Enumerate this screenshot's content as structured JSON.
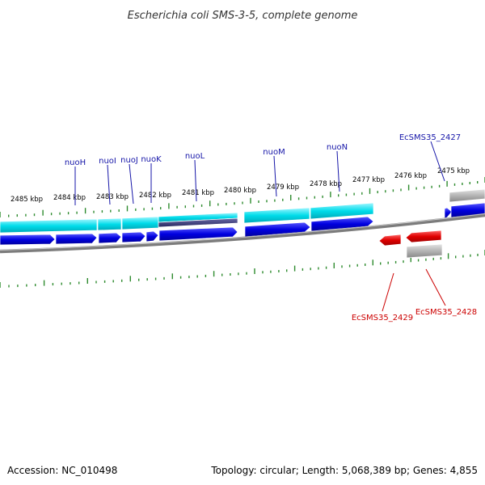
{
  "title": "Escherichia coli SMS-3-5, complete genome",
  "footer": {
    "accession": "Accession: NC_010498",
    "summary": "Topology: circular; Length: 5,068,389 bp; Genes: 4,855"
  },
  "ruler": {
    "unit": "kbp",
    "labels": [
      "2485 kbp",
      "2484 kbp",
      "2483 kbp",
      "2482 kbp",
      "2481 kbp",
      "2480 kbp",
      "2479 kbp",
      "2478 kbp",
      "2477 kbp",
      "2476 kbp",
      "2475 kbp"
    ]
  },
  "genes_top": [
    "nuoH",
    "nuoI",
    "nuoJ",
    "nuoK",
    "nuoL",
    "nuoM",
    "nuoN",
    "EcSMS35_2427"
  ],
  "genes_bottom": [
    "EcSMS35_2429",
    "EcSMS35_2428"
  ],
  "colors": {
    "forward_gene": "#0000e0",
    "reverse_gene": "#e00000",
    "cds": "#00d8e8",
    "pseudo": "#a0a0a0",
    "backbone": "#808080",
    "tick": "#2e8b2e",
    "label_blue": "#1515a8",
    "label_red": "#cc0000"
  }
}
